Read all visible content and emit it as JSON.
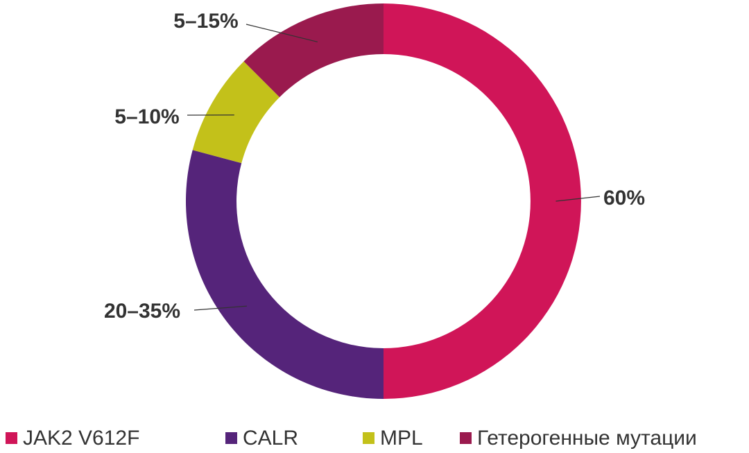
{
  "chart_data": {
    "type": "donut",
    "categories": [
      "JAK2 V612F",
      "CALR",
      "MPL",
      "Гетерогенные мутации"
    ],
    "values": [
      60,
      35,
      10,
      15
    ],
    "value_labels": [
      "60%",
      "20–35%",
      "5–10%",
      "5–15%"
    ],
    "colors": [
      "#d01558",
      "#55247a",
      "#c3c11a",
      "#9a1a4e"
    ],
    "legend": "bottom"
  }
}
